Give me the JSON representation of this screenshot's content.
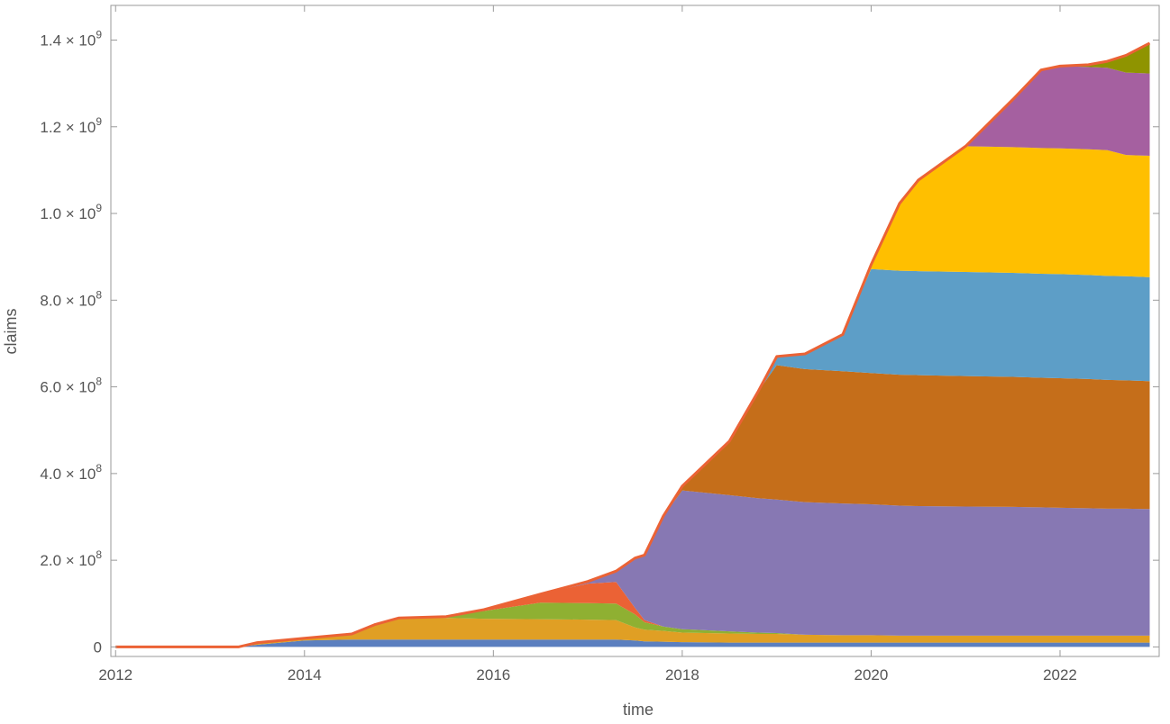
{
  "chart_data": {
    "type": "area",
    "stacked": true,
    "title": "",
    "xlabel": "time",
    "ylabel": "claims",
    "xlim": [
      2011.95,
      2023.05
    ],
    "ylim": [
      -22000000,
      1480000000
    ],
    "grid": false,
    "legend": "none",
    "x_ticks": [
      {
        "value": 2012,
        "label": "2012"
      },
      {
        "value": 2014,
        "label": "2014"
      },
      {
        "value": 2016,
        "label": "2016"
      },
      {
        "value": 2018,
        "label": "2018"
      },
      {
        "value": 2020,
        "label": "2020"
      },
      {
        "value": 2022,
        "label": "2022"
      }
    ],
    "y_ticks": [
      {
        "value": 0,
        "mantissa": "0",
        "exponent": ""
      },
      {
        "value": 200000000,
        "mantissa": "2.0 × 10",
        "exponent": "8"
      },
      {
        "value": 400000000,
        "mantissa": "4.0 × 10",
        "exponent": "8"
      },
      {
        "value": 600000000,
        "mantissa": "6.0 × 10",
        "exponent": "8"
      },
      {
        "value": 800000000,
        "mantissa": "8.0 × 10",
        "exponent": "8"
      },
      {
        "value": 1000000000,
        "mantissa": "1.0 × 10",
        "exponent": "9"
      },
      {
        "value": 1200000000,
        "mantissa": "1.2 × 10",
        "exponent": "9"
      },
      {
        "value": 1400000000,
        "mantissa": "1.4 × 10",
        "exponent": "9"
      }
    ],
    "x": [
      2012.0,
      2013.0,
      2013.3,
      2013.5,
      2014.0,
      2014.5,
      2014.75,
      2015.0,
      2015.5,
      2015.9,
      2016.5,
      2017.0,
      2017.3,
      2017.5,
      2017.6,
      2017.8,
      2018.0,
      2018.5,
      2018.8,
      2019.0,
      2019.3,
      2019.7,
      2020.0,
      2020.3,
      2020.5,
      2021.0,
      2021.5,
      2021.8,
      2022.0,
      2022.3,
      2022.5,
      2022.7,
      2022.95
    ],
    "series": [
      {
        "color": "#5b7fbf",
        "values": [
          0,
          0,
          0,
          5000000,
          15000000,
          17000000,
          17000000,
          17000000,
          17000000,
          17000000,
          17000000,
          17000000,
          17000000,
          15000000,
          13000000,
          12000000,
          11000000,
          10000000,
          10000000,
          10000000,
          10000000,
          10000000,
          10000000,
          10000000,
          10000000,
          10000000,
          10000000,
          10000000,
          10000000,
          10000000,
          10000000,
          10000000,
          10000000
        ]
      },
      {
        "color": "#e09f24",
        "values": [
          0,
          0,
          0,
          5000000,
          5000000,
          13000000,
          35000000,
          50000000,
          50000000,
          48000000,
          47000000,
          46000000,
          45000000,
          30000000,
          27000000,
          25000000,
          22000000,
          21000000,
          20000000,
          20000000,
          18000000,
          17000000,
          17000000,
          16000000,
          16000000,
          16000000,
          16000000,
          16000000,
          16000000,
          16000000,
          16000000,
          16000000,
          16000000
        ]
      },
      {
        "color": "#8fb032",
        "values": [
          0,
          0,
          0,
          0,
          0,
          0,
          0,
          0,
          3000000,
          18000000,
          38000000,
          38000000,
          38000000,
          30000000,
          17000000,
          10000000,
          8000000,
          5000000,
          3000000,
          2000000,
          0,
          0,
          0,
          0,
          0,
          0,
          0,
          0,
          0,
          0,
          0,
          0,
          0
        ]
      },
      {
        "color": "#eb6235",
        "values": [
          0,
          0,
          0,
          0,
          0,
          0,
          0,
          0,
          0,
          3000000,
          20000000,
          45000000,
          50000000,
          15000000,
          5000000,
          0,
          0,
          0,
          0,
          0,
          0,
          0,
          0,
          0,
          0,
          0,
          0,
          0,
          0,
          0,
          0,
          0,
          0
        ]
      },
      {
        "color": "#8778b3",
        "values": [
          0,
          0,
          0,
          0,
          0,
          0,
          0,
          0,
          0,
          0,
          0,
          5000000,
          25000000,
          115000000,
          150000000,
          255000000,
          320000000,
          314000000,
          310000000,
          308000000,
          306000000,
          304000000,
          302000000,
          300000000,
          299000000,
          298000000,
          297000000,
          296000000,
          295000000,
          294000000,
          293000000,
          293000000,
          292000000
        ]
      },
      {
        "color": "#c56e1a",
        "values": [
          0,
          0,
          0,
          0,
          0,
          0,
          0,
          0,
          0,
          0,
          0,
          0,
          0,
          0,
          0,
          0,
          10000000,
          125000000,
          245000000,
          310000000,
          307000000,
          305000000,
          303000000,
          302000000,
          302000000,
          301000000,
          300000000,
          299000000,
          299000000,
          298000000,
          297000000,
          296000000,
          295000000
        ]
      },
      {
        "color": "#5d9ec7",
        "values": [
          0,
          0,
          0,
          0,
          0,
          0,
          0,
          0,
          0,
          0,
          0,
          0,
          0,
          0,
          0,
          0,
          0,
          0,
          0,
          20000000,
          35000000,
          85000000,
          240000000,
          240000000,
          240000000,
          240000000,
          240000000,
          240000000,
          240000000,
          240000000,
          240000000,
          240000000,
          240000000
        ]
      },
      {
        "color": "#ffbf00",
        "values": [
          0,
          0,
          0,
          0,
          0,
          0,
          0,
          0,
          0,
          0,
          0,
          0,
          0,
          0,
          0,
          0,
          0,
          0,
          0,
          0,
          0,
          0,
          10000000,
          155000000,
          210000000,
          290000000,
          290000000,
          290000000,
          290000000,
          290000000,
          290000000,
          280000000,
          280000000
        ]
      },
      {
        "color": "#a560a0",
        "values": [
          0,
          0,
          0,
          0,
          0,
          0,
          0,
          0,
          0,
          0,
          0,
          0,
          0,
          0,
          0,
          0,
          0,
          0,
          0,
          0,
          0,
          0,
          0,
          0,
          0,
          0,
          110000000,
          180000000,
          190000000,
          190000000,
          190000000,
          190000000,
          190000000
        ]
      },
      {
        "color": "#8f9400",
        "values": [
          0,
          0,
          0,
          0,
          0,
          0,
          0,
          0,
          0,
          0,
          0,
          0,
          0,
          0,
          0,
          0,
          0,
          0,
          0,
          0,
          0,
          0,
          0,
          0,
          0,
          0,
          0,
          0,
          0,
          5000000,
          15000000,
          40000000,
          70000000
        ]
      }
    ],
    "total_line_color": "#eb6235"
  }
}
